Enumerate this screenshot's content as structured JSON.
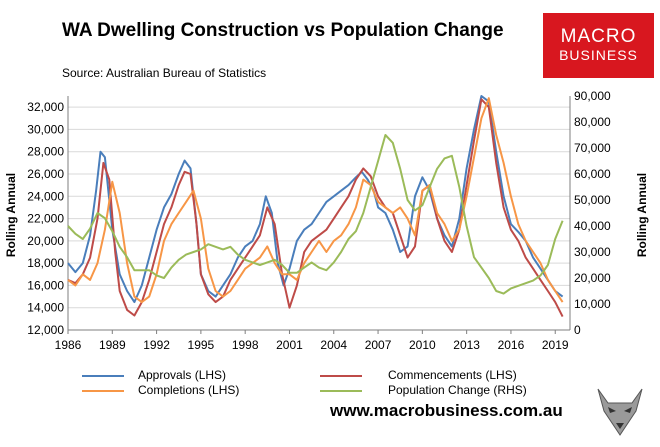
{
  "header": {
    "title": "WA Dwelling Construction vs Population Change",
    "source": "Source: Australian Bureau of Statistics"
  },
  "logo": {
    "line1": "MACRO",
    "line2": "BUSINESS"
  },
  "footer": {
    "website": "www.macrobusiness.com.au"
  },
  "colors": {
    "approvals": "#4a7ebb",
    "commencements": "#be4b48",
    "completions": "#f79646",
    "population": "#9bbb59"
  },
  "chart_data": {
    "type": "line",
    "title": "WA Dwelling Construction vs Population Change",
    "ylabel": "Rolling Annual",
    "y2label": "Rolling Annual",
    "ylim": [
      12000,
      33000
    ],
    "y2lim": [
      0,
      90000
    ],
    "xlim": [
      1986,
      2020
    ],
    "yticks": [
      "12,000",
      "14,000",
      "16,000",
      "18,000",
      "20,000",
      "22,000",
      "24,000",
      "26,000",
      "28,000",
      "30,000",
      "32,000"
    ],
    "y2ticks": [
      "0",
      "10,000",
      "20,000",
      "30,000",
      "40,000",
      "50,000",
      "60,000",
      "70,000",
      "80,000",
      "90,000"
    ],
    "xticks": [
      "1986",
      "1989",
      "1992",
      "1995",
      "1998",
      "2001",
      "2004",
      "2007",
      "2010",
      "2013",
      "2016",
      "2019"
    ],
    "legend": [
      "Approvals (LHS)",
      "Commencements (LHS)",
      "Completions (LHS)",
      "Population Change (RHS)"
    ],
    "series": [
      {
        "name": "Approvals (LHS)",
        "axis": "left",
        "color": "#4a7ebb",
        "x": [
          1986,
          1986.5,
          1987,
          1987.5,
          1987.9,
          1988.2,
          1988.5,
          1989,
          1989.5,
          1990,
          1990.5,
          1991,
          1991.5,
          1992,
          1992.5,
          1993,
          1993.5,
          1993.9,
          1994.3,
          1994.7,
          1995,
          1995.5,
          1996,
          1996.5,
          1997,
          1997.5,
          1998,
          1998.5,
          1999,
          1999.4,
          1999.8,
          2000.2,
          2000.6,
          2001,
          2001.5,
          2002,
          2002.5,
          2003,
          2003.5,
          2004,
          2004.5,
          2005,
          2005.5,
          2005.9,
          2006.3,
          2006.7,
          2007,
          2007.5,
          2008,
          2008.5,
          2009,
          2009.5,
          2010,
          2010.5,
          2011,
          2011.5,
          2012,
          2012.5,
          2013,
          2013.5,
          2014,
          2014.5,
          2015,
          2015.5,
          2016,
          2016.5,
          2017,
          2017.5,
          2018,
          2018.5,
          2019,
          2019.5
        ],
        "y": [
          18000,
          17200,
          18000,
          20500,
          24500,
          28000,
          27500,
          21000,
          17000,
          15500,
          14500,
          16000,
          18500,
          21000,
          23000,
          24200,
          26000,
          27200,
          26500,
          21500,
          17000,
          15500,
          15000,
          16000,
          17000,
          18500,
          19500,
          20000,
          21500,
          24000,
          22500,
          18000,
          16000,
          17500,
          20000,
          21000,
          21500,
          22500,
          23500,
          24000,
          24500,
          25000,
          25700,
          26200,
          25500,
          24500,
          23000,
          22500,
          21000,
          19000,
          19500,
          24000,
          25700,
          24500,
          22000,
          20500,
          19500,
          22000,
          26500,
          30000,
          33000,
          32500,
          28000,
          24000,
          21500,
          20800,
          20000,
          18500,
          17500,
          16500,
          15500,
          15000
        ]
      },
      {
        "name": "Commencements (LHS)",
        "axis": "left",
        "color": "#be4b48",
        "x": [
          1986,
          1986.5,
          1987,
          1987.5,
          1988,
          1988.4,
          1988.8,
          1989.2,
          1989.5,
          1990,
          1990.5,
          1991,
          1991.5,
          1992,
          1992.5,
          1993,
          1993.5,
          1993.9,
          1994.3,
          1994.7,
          1995,
          1995.5,
          1996,
          1996.5,
          1997,
          1997.5,
          1998,
          1998.5,
          1999,
          1999.5,
          2000,
          2000.5,
          2001,
          2001.5,
          2002,
          2002.5,
          2003,
          2003.5,
          2004,
          2004.5,
          2005,
          2005.5,
          2006,
          2006.5,
          2007,
          2007.5,
          2008,
          2008.5,
          2009,
          2009.5,
          2010,
          2010.5,
          2011,
          2011.5,
          2012,
          2012.5,
          2013,
          2013.5,
          2014,
          2014.5,
          2015,
          2015.5,
          2016,
          2016.5,
          2017,
          2017.5,
          2018,
          2018.5,
          2019,
          2019.5
        ],
        "y": [
          16500,
          16200,
          17000,
          18500,
          22000,
          27000,
          25500,
          19000,
          15500,
          13800,
          13300,
          14500,
          16500,
          19000,
          21500,
          23000,
          25000,
          26200,
          26000,
          21500,
          17000,
          15200,
          14500,
          15000,
          16500,
          17500,
          18500,
          19500,
          20500,
          23000,
          21500,
          17000,
          14000,
          16000,
          19000,
          20000,
          20500,
          21000,
          22000,
          23000,
          24000,
          25500,
          26500,
          25800,
          24000,
          23000,
          22500,
          20500,
          18500,
          19500,
          24500,
          25000,
          22000,
          20000,
          19000,
          21000,
          25000,
          29000,
          32700,
          32000,
          27000,
          23000,
          21000,
          20000,
          18500,
          17500,
          16500,
          15500,
          14500,
          13200
        ]
      },
      {
        "name": "Completions (LHS)",
        "axis": "left",
        "color": "#f79646",
        "x": [
          1986,
          1986.5,
          1987,
          1987.5,
          1988,
          1988.5,
          1989,
          1989.5,
          1990,
          1990.5,
          1991,
          1991.5,
          1992,
          1992.5,
          1993,
          1993.5,
          1994,
          1994.5,
          1995,
          1995.5,
          1996,
          1996.5,
          1997,
          1997.5,
          1998,
          1998.5,
          1999,
          1999.5,
          2000,
          2000.5,
          2001,
          2001.5,
          2002,
          2002.5,
          2003,
          2003.5,
          2004,
          2004.5,
          2005,
          2005.5,
          2006,
          2006.5,
          2007,
          2007.5,
          2008,
          2008.5,
          2009,
          2009.5,
          2010,
          2010.5,
          2011,
          2011.5,
          2012,
          2012.5,
          2013,
          2013.5,
          2014,
          2014.5,
          2015,
          2015.5,
          2016,
          2016.5,
          2017,
          2017.5,
          2018,
          2018.5,
          2019,
          2019.5
        ],
        "y": [
          16500,
          16000,
          17000,
          16500,
          18000,
          21000,
          25300,
          22500,
          18000,
          15000,
          14500,
          15000,
          17000,
          20000,
          21500,
          22500,
          23500,
          24500,
          22000,
          17500,
          15500,
          15000,
          15500,
          16500,
          17500,
          18000,
          18500,
          19500,
          18000,
          17000,
          17000,
          16500,
          18000,
          19000,
          20000,
          19000,
          20000,
          20500,
          21500,
          23000,
          25500,
          25000,
          23500,
          23000,
          22500,
          23000,
          22000,
          20500,
          24500,
          25000,
          22500,
          21500,
          20000,
          21000,
          24000,
          27500,
          31000,
          32800,
          29500,
          27000,
          24000,
          21500,
          20000,
          19000,
          18000,
          16500,
          15500,
          14500
        ]
      },
      {
        "name": "Population Change (RHS)",
        "axis": "right",
        "color": "#9bbb59",
        "x": [
          1986,
          1986.5,
          1987,
          1987.5,
          1988,
          1988.5,
          1989,
          1989.5,
          1990,
          1990.5,
          1991,
          1991.5,
          1992,
          1992.5,
          1993,
          1993.5,
          1994,
          1994.5,
          1995,
          1995.5,
          1996,
          1996.5,
          1997,
          1997.5,
          1998,
          1998.5,
          1999,
          1999.5,
          2000,
          2000.5,
          2001,
          2001.5,
          2002,
          2002.5,
          2003,
          2003.5,
          2004,
          2004.5,
          2005,
          2005.5,
          2006,
          2006.5,
          2007,
          2007.5,
          2008,
          2008.5,
          2009,
          2009.5,
          2010,
          2010.5,
          2011,
          2011.5,
          2012,
          2012.5,
          2013,
          2013.5,
          2014,
          2014.5,
          2015,
          2015.5,
          2016,
          2016.5,
          2017,
          2017.5,
          2018,
          2018.5,
          2019,
          2019.5
        ],
        "y": [
          40000,
          37000,
          35000,
          39000,
          45000,
          43000,
          38000,
          32000,
          28000,
          23000,
          23000,
          23000,
          21000,
          20000,
          24000,
          27000,
          29000,
          30000,
          31000,
          33000,
          32000,
          31000,
          32000,
          29000,
          27000,
          26000,
          25000,
          26000,
          27000,
          25000,
          22000,
          22000,
          24000,
          26000,
          24000,
          23000,
          26000,
          30000,
          35000,
          38000,
          45000,
          55000,
          65000,
          75000,
          72000,
          62000,
          50000,
          46000,
          48000,
          55000,
          62000,
          66000,
          67000,
          55000,
          40000,
          28000,
          24000,
          20000,
          15000,
          14000,
          16000,
          17000,
          18000,
          19000,
          21000,
          25000,
          35000,
          42000
        ]
      }
    ]
  }
}
